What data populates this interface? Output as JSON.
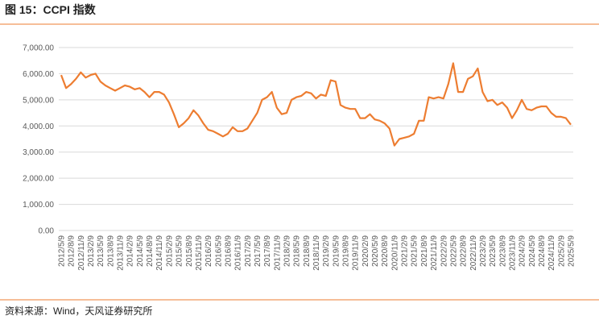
{
  "chart_data": {
    "type": "line",
    "title": "图 15：CCPI 指数",
    "source": "资料来源：Wind，天风证券研究所",
    "categories": [
      "2012/5/9",
      null,
      "2012/8/9",
      null,
      "2012/11/9",
      null,
      "2013/2/9",
      null,
      "2013/5/9",
      null,
      "2013/8/9",
      null,
      "2013/11/9",
      null,
      "2014/2/9",
      null,
      "2014/5/9",
      null,
      "2014/8/9",
      null,
      "2014/11/9",
      null,
      "2015/2/9",
      null,
      "2015/5/9",
      null,
      "2015/8/9",
      null,
      "2015/11/9",
      null,
      "2016/2/9",
      null,
      "2016/5/9",
      null,
      "2016/8/9",
      null,
      "2016/11/9",
      null,
      "2017/2/9",
      null,
      "2017/5/9",
      null,
      "2017/8/9",
      null,
      "2017/11/9",
      null,
      "2018/2/9",
      null,
      "2018/5/9",
      null,
      "2018/8/9",
      null,
      "2018/11/9",
      null,
      "2019/2/9",
      null,
      "2019/5/9",
      null,
      "2019/8/9",
      null,
      "2019/11/9",
      null,
      "2020/2/9",
      null,
      "2020/5/9",
      null,
      "2020/8/9",
      null,
      "2020/11/9",
      null,
      "2021/2/9",
      null,
      "2021/5/9",
      null,
      "2021/8/9",
      null,
      "2021/11/9",
      null,
      "2022/2/9",
      null,
      "2022/5/9",
      null,
      "2022/8/9",
      null,
      "2022/11/9",
      null,
      "2023/2/9",
      null,
      "2023/5/9",
      null,
      "2023/8/9",
      null,
      "2023/11/9",
      null,
      "2024/2/9",
      null,
      "2024/5/9",
      null,
      "2024/8/9",
      null,
      "2024/11/9",
      null,
      "2025/2/9",
      null,
      "2025/5/9"
    ],
    "series": [
      {
        "name": "CCPI",
        "color": "#ed7d31",
        "values": [
          5950,
          5450,
          5600,
          5800,
          6050,
          5850,
          5950,
          6000,
          5700,
          5550,
          5450,
          5350,
          5450,
          5550,
          5500,
          5400,
          5450,
          5300,
          5100,
          5300,
          5300,
          5200,
          4900,
          4450,
          3950,
          4100,
          4300,
          4600,
          4400,
          4100,
          3850,
          3800,
          3700,
          3600,
          3700,
          3950,
          3800,
          3800,
          3900,
          4200,
          4500,
          5000,
          5100,
          5300,
          4700,
          4450,
          4500,
          5000,
          5100,
          5150,
          5300,
          5250,
          5050,
          5200,
          5150,
          5750,
          5700,
          4800,
          4700,
          4650,
          4650,
          4300,
          4300,
          4450,
          4250,
          4200,
          4100,
          3900,
          3250,
          3500,
          3550,
          3600,
          3700,
          4200,
          4200,
          5100,
          5050,
          5100,
          5050,
          5600,
          6400,
          5300,
          5300,
          5800,
          5900,
          6200,
          5300,
          4950,
          5000,
          4800,
          4900,
          4700,
          4300,
          4600,
          5000,
          4650,
          4600,
          4700,
          4750,
          4750,
          4500,
          4350,
          4350,
          4300,
          4050
        ]
      }
    ],
    "ylim": [
      0,
      7000
    ],
    "yticks": [
      {
        "value": 0,
        "label": "0.00"
      },
      {
        "value": 1000,
        "label": "1,000.00"
      },
      {
        "value": 2000,
        "label": "2,000.00"
      },
      {
        "value": 3000,
        "label": "3,000.00"
      },
      {
        "value": 4000,
        "label": "4,000.00"
      },
      {
        "value": 5000,
        "label": "5,000.00"
      },
      {
        "value": 6000,
        "label": "6,000.00"
      },
      {
        "value": 7000,
        "label": "7,000.00"
      }
    ],
    "grid": true
  }
}
